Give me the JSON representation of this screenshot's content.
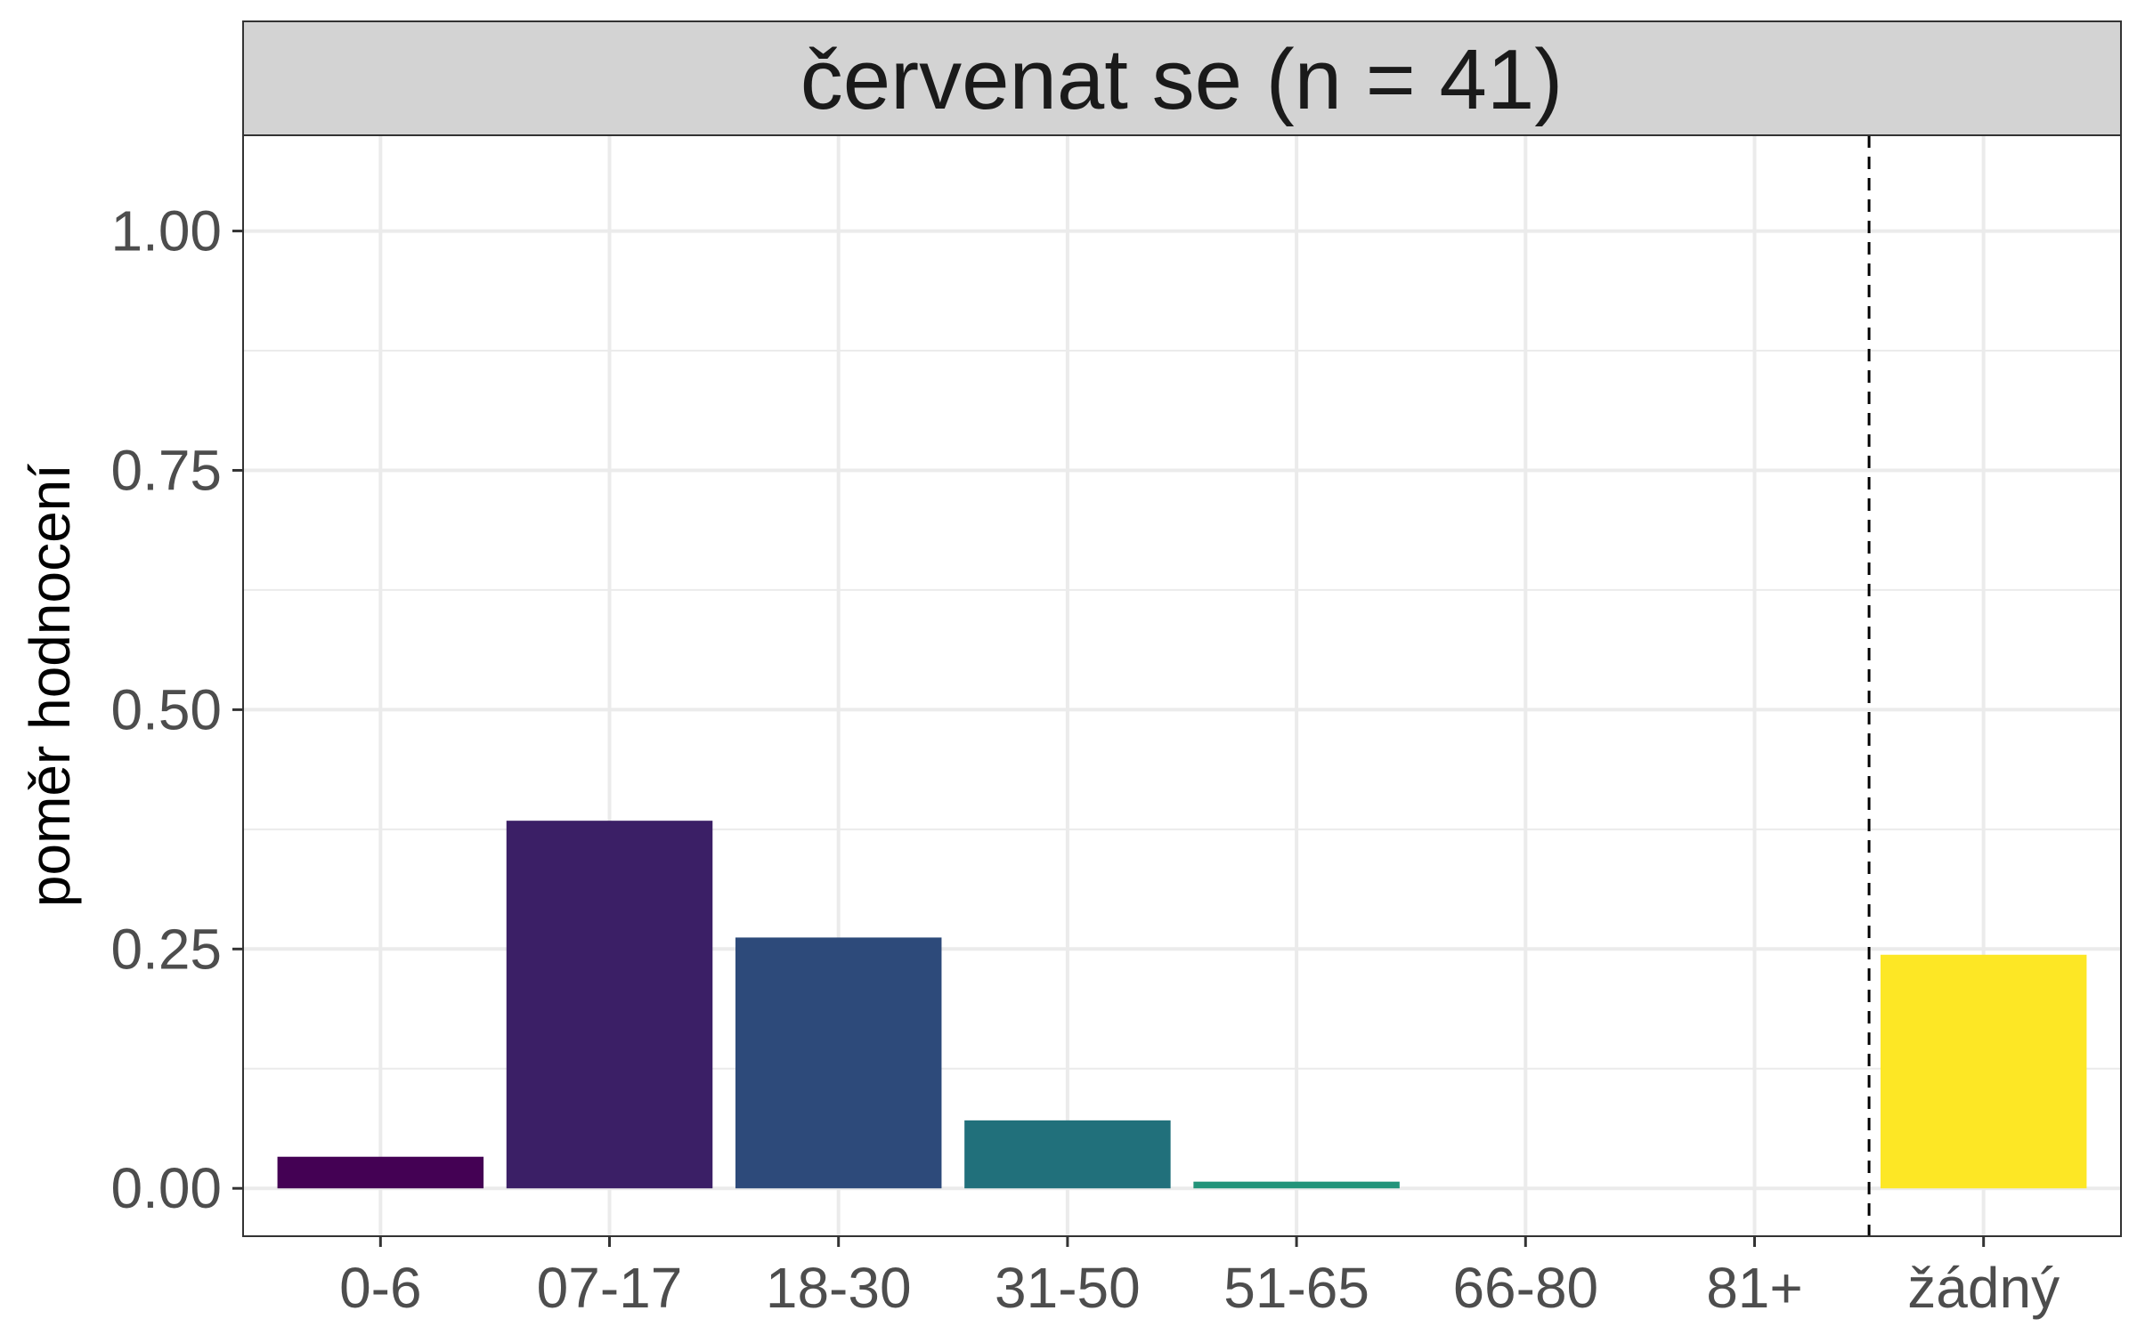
{
  "chart_data": {
    "type": "bar",
    "title": "červenat se (n = 41)",
    "xlabel": "",
    "ylabel": "poměr hodnocení",
    "categories": [
      "0-6",
      "07-17",
      "18-30",
      "31-50",
      "51-65",
      "66-80",
      "81+",
      "žádný"
    ],
    "values": [
      0.033,
      0.384,
      0.262,
      0.071,
      0.007,
      0.0,
      0.0,
      0.244
    ],
    "colors": [
      "#440154",
      "#3B1F66",
      "#2D4A7A",
      "#21707B",
      "#23947A",
      "#55C667",
      "#B8DE29",
      "#FDE725"
    ],
    "ylim": [
      -0.05,
      1.1
    ],
    "yticks": [
      0.0,
      0.25,
      0.5,
      0.75,
      1.0
    ],
    "ytick_labels": [
      "0.00",
      "0.25",
      "0.50",
      "0.75",
      "1.00"
    ],
    "reference_line": {
      "style": "dashed",
      "between": [
        "81+",
        "žádný"
      ]
    },
    "grid": true,
    "legend": "none"
  }
}
